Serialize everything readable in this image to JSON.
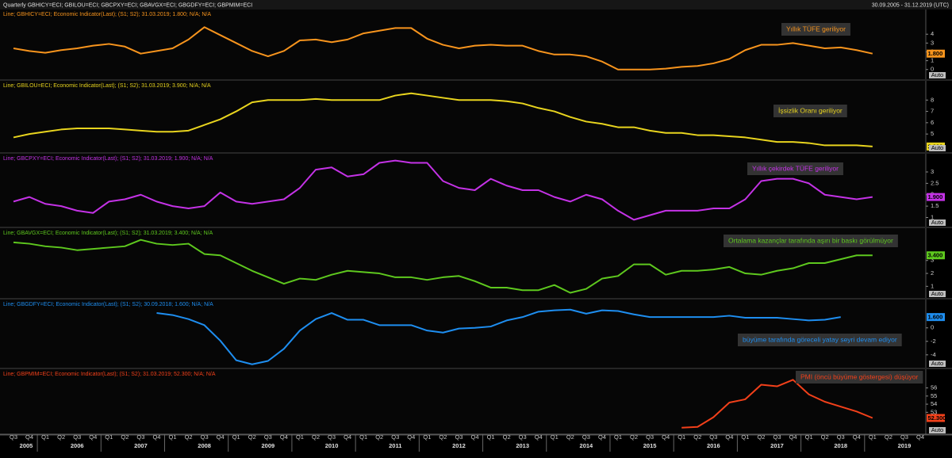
{
  "toolbar": {
    "title": "Quarterly GBHICY=ECI; GBILOU=ECI; GBCPXY=ECI; GBAVGX=ECI; GBGDFY=ECI; GBPMIM=ECI",
    "range": "30.09.2005 - 31.12.2019 (UTC)"
  },
  "x_axis": {
    "quarters": [
      "Q3",
      "Q4",
      "Q1",
      "Q2",
      "Q3",
      "Q4",
      "Q1",
      "Q2",
      "Q3",
      "Q4",
      "Q1",
      "Q2",
      "Q3",
      "Q4",
      "Q1",
      "Q2",
      "Q3",
      "Q4",
      "Q1",
      "Q2",
      "Q3",
      "Q4",
      "Q1",
      "Q2",
      "Q3",
      "Q4",
      "Q1",
      "Q2",
      "Q3",
      "Q4",
      "Q1",
      "Q2",
      "Q3",
      "Q4",
      "Q1",
      "Q2",
      "Q3",
      "Q4",
      "Q1",
      "Q2",
      "Q3",
      "Q4",
      "Q1",
      "Q2",
      "Q3",
      "Q4",
      "Q1",
      "Q2",
      "Q3",
      "Q4",
      "Q1",
      "Q2",
      "Q3",
      "Q4",
      "Q1",
      "Q2",
      "Q3",
      "Q4"
    ],
    "years": [
      "2005",
      "2006",
      "2007",
      "2008",
      "2009",
      "2010",
      "2011",
      "2012",
      "2013",
      "2014",
      "2015",
      "2016",
      "2017",
      "2018",
      "2019"
    ]
  },
  "chart_data": [
    {
      "type": "line",
      "header": "Line; GBHICY=ECI; Economic Indicator(Last); (S1; S2); 31.03.2019; 1.800; N/A; N/A",
      "annotation": "Yıllık TÜFE geriliyor",
      "color": "#f7941d",
      "values": [
        2.4,
        2.1,
        1.9,
        2.2,
        2.4,
        2.7,
        2.9,
        2.6,
        1.8,
        2.1,
        2.4,
        3.4,
        4.8,
        3.9,
        3.0,
        2.1,
        1.5,
        2.1,
        3.3,
        3.4,
        3.1,
        3.4,
        4.1,
        4.4,
        4.7,
        4.7,
        3.5,
        2.8,
        2.4,
        2.7,
        2.8,
        2.7,
        2.7,
        2.1,
        1.7,
        1.7,
        1.5,
        0.9,
        0.0,
        0.0,
        0.0,
        0.1,
        0.3,
        0.4,
        0.7,
        1.2,
        2.2,
        2.8,
        2.8,
        3.0,
        2.7,
        2.4,
        2.5,
        2.2,
        1.8,
        null,
        null,
        null
      ],
      "last_value_label": "1.800",
      "ylim": [
        -1.1,
        6.8
      ],
      "yticks": [
        0,
        1,
        2,
        3,
        4
      ],
      "scale_mode": "Auto"
    },
    {
      "type": "line",
      "header": "Line; GBILOU=ECI; Economic Indicator(Last); (S1; S2); 31.03.2019; 3.900; N/A; N/A",
      "annotation": "İşsizlik Oranı geriliyor",
      "color": "#e8d41e",
      "values": [
        4.7,
        5.0,
        5.2,
        5.4,
        5.5,
        5.5,
        5.5,
        5.4,
        5.3,
        5.2,
        5.2,
        5.3,
        5.8,
        6.3,
        7.0,
        7.8,
        8.0,
        8.0,
        8.0,
        8.1,
        8.0,
        8.0,
        8.0,
        8.0,
        8.4,
        8.6,
        8.4,
        8.2,
        8.0,
        8.0,
        8.0,
        7.9,
        7.7,
        7.3,
        7.0,
        6.5,
        6.1,
        5.9,
        5.6,
        5.6,
        5.3,
        5.1,
        5.1,
        4.9,
        4.9,
        4.8,
        4.7,
        4.5,
        4.3,
        4.3,
        4.2,
        4.0,
        4.0,
        4.0,
        3.9,
        null,
        null,
        null
      ],
      "last_value_label": "3.900",
      "ylim": [
        3.4,
        9.7
      ],
      "yticks": [
        5,
        6,
        7,
        8
      ],
      "scale_mode": "Auto"
    },
    {
      "type": "line",
      "header": "Line; GBCPXY=ECI; Economic Indicator(Last); (S1; S2); 31.03.2019; 1.900; N/A; N/A",
      "annotation": "Yıllık çekirdek TÜFE geriliyor",
      "color": "#c432e6",
      "values": [
        1.7,
        1.9,
        1.6,
        1.5,
        1.3,
        1.2,
        1.7,
        1.8,
        2.0,
        1.7,
        1.5,
        1.4,
        1.5,
        2.1,
        1.7,
        1.6,
        1.7,
        1.8,
        2.3,
        3.1,
        3.2,
        2.8,
        2.9,
        3.4,
        3.5,
        3.4,
        3.4,
        2.6,
        2.3,
        2.2,
        2.7,
        2.4,
        2.2,
        2.2,
        1.9,
        1.7,
        2.0,
        1.8,
        1.3,
        0.9,
        1.1,
        1.3,
        1.3,
        1.3,
        1.4,
        1.4,
        1.8,
        2.6,
        2.7,
        2.7,
        2.5,
        2.0,
        1.9,
        1.8,
        1.9,
        null,
        null,
        null
      ],
      "last_value_label": "1.900",
      "ylim": [
        0.6,
        3.8
      ],
      "yticks": [
        1,
        1.5,
        2,
        2.5,
        3
      ],
      "scale_mode": "Auto"
    },
    {
      "type": "line",
      "header": "Line; GBAVGX=ECI; Economic Indicator(Last); (S1; S2); 31.03.2019; 3.400; N/A; N/A",
      "annotation": "Ortalama kazançlar tarafında aşırı bir baskı görülmüyor",
      "color": "#5ec81e",
      "values": [
        4.4,
        4.3,
        4.1,
        4.0,
        3.8,
        3.9,
        4.0,
        4.1,
        4.6,
        4.3,
        4.2,
        4.3,
        3.5,
        3.4,
        2.8,
        2.2,
        1.7,
        1.2,
        1.6,
        1.5,
        1.9,
        2.2,
        2.1,
        2.0,
        1.7,
        1.7,
        1.5,
        1.7,
        1.8,
        1.4,
        0.9,
        0.9,
        0.7,
        0.7,
        1.1,
        0.5,
        0.8,
        1.6,
        1.8,
        2.7,
        2.7,
        1.9,
        2.2,
        2.2,
        2.3,
        2.5,
        2.0,
        1.9,
        2.2,
        2.4,
        2.8,
        2.8,
        3.1,
        3.4,
        3.4,
        null,
        null,
        null
      ],
      "last_value_label": "3.400",
      "ylim": [
        0.1,
        5.5
      ],
      "yticks": [
        1,
        2,
        3
      ],
      "scale_mode": "Auto"
    },
    {
      "type": "line",
      "header": "Line; GBGDFY=ECI; Economic Indicator(Last); (S1; S2); 30.09.2018; 1.600; N/A; N/A",
      "annotation": "büyüme tarafında göreceli yatay seyri devam ediyor",
      "color": "#1e8ef0",
      "values": [
        null,
        null,
        null,
        null,
        null,
        null,
        null,
        null,
        null,
        2.2,
        1.9,
        1.3,
        0.4,
        -1.9,
        -4.8,
        -5.4,
        -4.9,
        -3.1,
        -0.4,
        1.3,
        2.2,
        1.2,
        1.2,
        0.4,
        0.4,
        0.4,
        -0.4,
        -0.7,
        -0.1,
        0.0,
        0.2,
        1.1,
        1.6,
        2.4,
        2.6,
        2.7,
        2.1,
        2.6,
        2.5,
        2.0,
        1.6,
        1.6,
        1.6,
        1.6,
        1.6,
        1.8,
        1.5,
        1.5,
        1.5,
        1.3,
        1.1,
        1.2,
        1.6,
        null,
        null,
        null,
        null,
        null
      ],
      "last_value_label": "1.600",
      "ylim": [
        -5.9,
        4.2
      ],
      "yticks": [
        -4,
        -2,
        0
      ],
      "scale_mode": "Auto"
    },
    {
      "type": "line",
      "header": "Line; GBPMIM=ECI; Economic Indicator(Last); (S1; S2); 31.03.2019; 52.300; N/A; N/A",
      "annotation": "PMI (öncü büyüme göstergesi) düşüyor",
      "color": "#f2401a",
      "values": [
        null,
        null,
        null,
        null,
        null,
        null,
        null,
        null,
        null,
        null,
        null,
        null,
        null,
        null,
        null,
        null,
        null,
        null,
        null,
        null,
        null,
        null,
        null,
        null,
        null,
        null,
        null,
        null,
        null,
        null,
        null,
        null,
        null,
        null,
        null,
        null,
        null,
        null,
        null,
        null,
        null,
        null,
        51.1,
        51.2,
        52.4,
        54.2,
        54.6,
        56.4,
        56.2,
        57.0,
        55.2,
        54.3,
        53.7,
        53.1,
        52.3,
        null,
        null,
        null
      ],
      "last_value_label": "52.300",
      "ylim": [
        50.3,
        58.3
      ],
      "yticks": [
        53,
        54,
        55,
        56
      ],
      "scale_mode": "Auto"
    }
  ]
}
